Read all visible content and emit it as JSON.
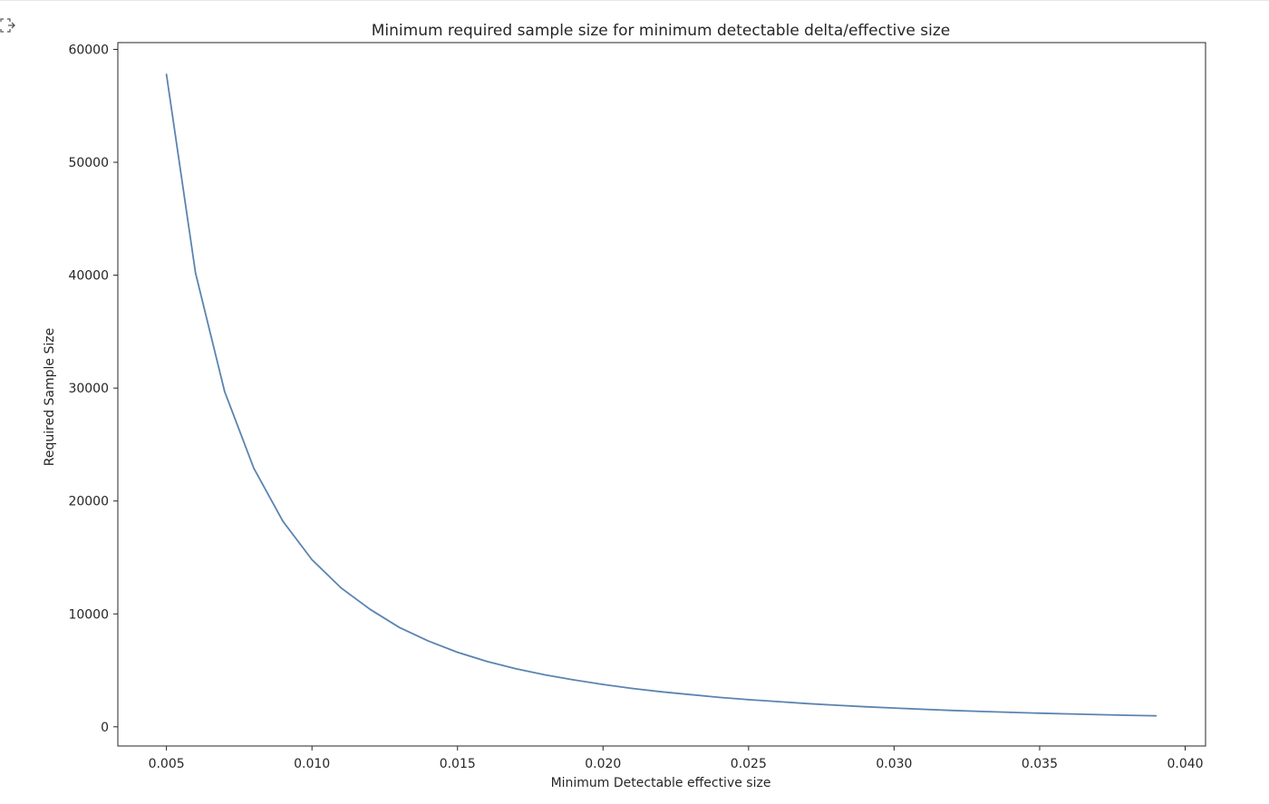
{
  "output_icon": "output-arrow-icon",
  "chart_data": {
    "type": "line",
    "title": "Minimum required sample size for minimum detectable delta/effective size",
    "xlabel": "Minimum Detectable effective size",
    "ylabel": "Required Sample Size",
    "xlim": [
      0.00333,
      0.0407
    ],
    "ylim": [
      -1700,
      60600
    ],
    "xticks": [
      0.005,
      0.01,
      0.015,
      0.02,
      0.025,
      0.03,
      0.035,
      0.04
    ],
    "xtick_labels": [
      "0.005",
      "0.010",
      "0.015",
      "0.020",
      "0.025",
      "0.030",
      "0.035",
      "0.040"
    ],
    "yticks": [
      0,
      10000,
      20000,
      30000,
      40000,
      50000,
      60000
    ],
    "ytick_labels": [
      "0",
      "10000",
      "20000",
      "30000",
      "40000",
      "50000",
      "60000"
    ],
    "line_color": "#5b84b1",
    "series": [
      {
        "name": "required_sample_size",
        "x": [
          0.005,
          0.006,
          0.007,
          0.008,
          0.009,
          0.01,
          0.011,
          0.012,
          0.013,
          0.014,
          0.015,
          0.016,
          0.017,
          0.018,
          0.019,
          0.02,
          0.021,
          0.022,
          0.023,
          0.024,
          0.025,
          0.026,
          0.027,
          0.028,
          0.029,
          0.03,
          0.031,
          0.032,
          0.033,
          0.034,
          0.035,
          0.036,
          0.037,
          0.038,
          0.039
        ],
        "y": [
          57800,
          40200,
          29700,
          22900,
          18200,
          14800,
          12300,
          10400,
          8800,
          7600,
          6600,
          5800,
          5150,
          4600,
          4150,
          3750,
          3400,
          3100,
          2850,
          2600,
          2400,
          2230,
          2060,
          1910,
          1780,
          1660,
          1550,
          1450,
          1360,
          1280,
          1210,
          1140,
          1080,
          1020,
          970
        ]
      }
    ]
  }
}
